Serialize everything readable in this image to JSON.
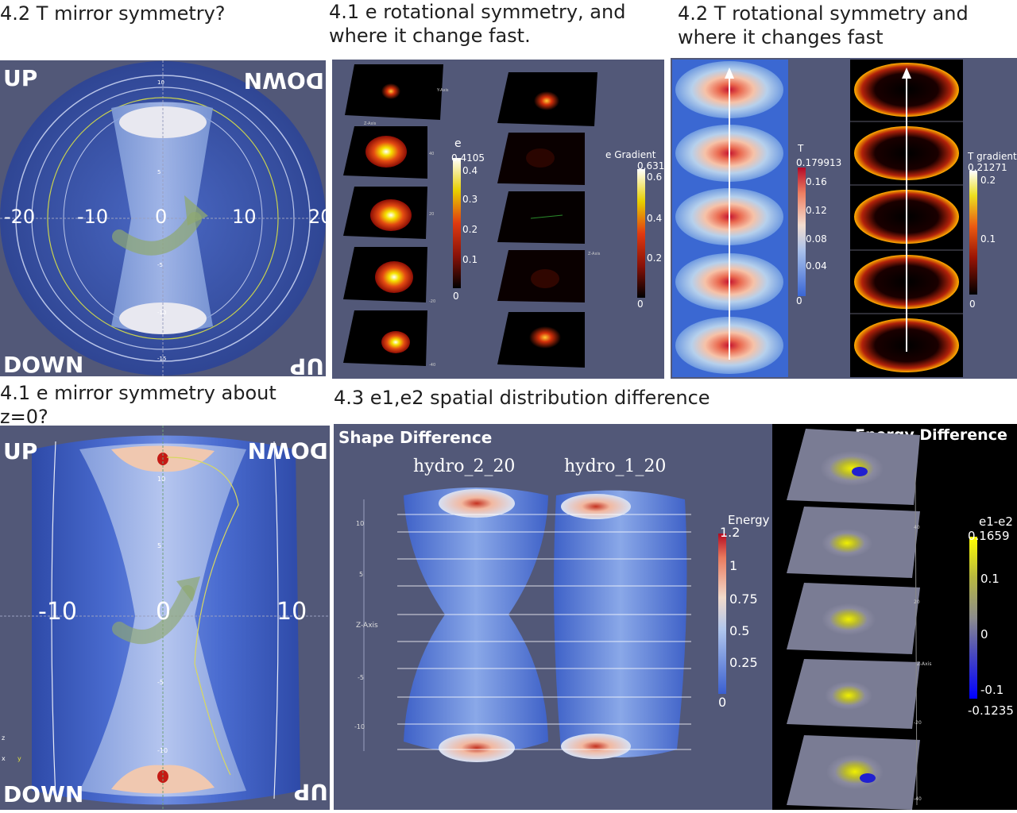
{
  "headings": {
    "t_mirror": "4.2 T mirror symmetry?",
    "e_rotational": "4.1 e rotational symmetry, and\nwhere it change fast.",
    "t_rotational": "4.2 T rotational symmetry and\nwhere it changes fast",
    "e_mirror": "4.1 e mirror symmetry about\nz=0?",
    "e1e2_diff": "4.3 e1,e2 spatial distribution difference"
  },
  "panel_t_mirror": {
    "corner_tl": "UP",
    "corner_tr": "DOWN",
    "corner_bl": "DOWN",
    "corner_br": "UP",
    "x_ticks": [
      "-20",
      "-10",
      "0",
      "10",
      "20"
    ],
    "small_ticks": [
      "10",
      "5",
      "0",
      "-5",
      "-10",
      "-15"
    ]
  },
  "panel_e_rotational": {
    "legend_e": {
      "title": "e",
      "max": "0.4105",
      "ticks": [
        "0.4",
        "0.3",
        "0.2",
        "0.1",
        "0"
      ]
    },
    "legend_grad": {
      "title": "e Gradient",
      "max": "0.631",
      "ticks": [
        "0.6",
        "0.4",
        "0.2",
        "0"
      ]
    },
    "axis_labels": [
      "Y-Axis",
      "Z-Axis",
      "Z-Axis"
    ],
    "slice_ticks": [
      "40",
      "20",
      "-20",
      "-40"
    ]
  },
  "panel_t_rotational": {
    "legend_t": {
      "title": "T",
      "max": "0.179913",
      "ticks": [
        "0.16",
        "0.12",
        "0.08",
        "0.04",
        "0"
      ]
    },
    "legend_grad": {
      "title": "T gradient",
      "max": "0.21271",
      "ticks": [
        "0.2",
        "0.1",
        "0"
      ]
    }
  },
  "panel_e_mirror": {
    "corner_tl": "UP",
    "corner_tr": "DOWN",
    "corner_bl": "DOWN",
    "corner_br": "UP",
    "x_ticks": [
      "-10",
      "0",
      "10"
    ],
    "small_ticks": [
      "10",
      "5",
      "-5",
      "-10"
    ],
    "axis_letters": [
      "z",
      "x",
      "y"
    ]
  },
  "panel_shape_diff": {
    "title": "Shape Difference",
    "label_left": "hydro_2_20",
    "label_right": "hydro_1_20",
    "z_axis_label": "Z-Axis",
    "z_ticks": [
      "10",
      "5",
      "0",
      "-5",
      "-10"
    ],
    "legend": {
      "title": "Energy",
      "max": "1.2",
      "ticks": [
        "1",
        "0.75",
        "0.5",
        "0.25",
        "0"
      ]
    }
  },
  "panel_energy_diff": {
    "title": "Energy Difference",
    "legend": {
      "title": "e1-e2",
      "max": "0.1659",
      "min": "-0.1235",
      "ticks": [
        "0.1",
        "0",
        "-0.1"
      ]
    },
    "slice_ticks": [
      "40",
      "20",
      "-20",
      "-40"
    ],
    "axis_label": "Z-Axis"
  },
  "colors": {
    "slate_bg": "#525878",
    "cylinder_blue": "#3d5bb8",
    "light_blue": "#8aa6e0",
    "arrow_green": "#8fa870",
    "black_bg": "#000000",
    "white": "#ffffff"
  }
}
